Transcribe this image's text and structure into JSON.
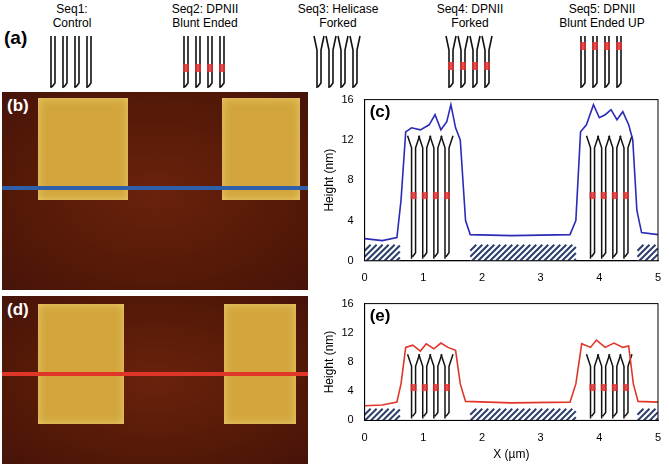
{
  "diagram": {
    "letter": "(a)",
    "sequences": [
      {
        "lines": [
          "Seq1:",
          "Control"
        ]
      },
      {
        "lines": [
          "Seq2: DPNII",
          "Blunt Ended"
        ]
      },
      {
        "lines": [
          "Seq3: Helicase",
          "Forked"
        ]
      },
      {
        "lines": [
          "Seq4: DPNII",
          "Forked"
        ]
      },
      {
        "lines": [
          "Seq5: DPNII",
          "Blunt Ended UP"
        ]
      }
    ]
  },
  "images": [
    {
      "letter": "(b)",
      "line_color": "#2f5fa8"
    },
    {
      "letter": "(d)",
      "line_color": "#e0362a"
    }
  ],
  "chart_data": [
    {
      "type": "line",
      "title": "(c)",
      "ylabel": "Height (nm)",
      "x": [
        0,
        0.3,
        0.55,
        0.62,
        0.7,
        0.8,
        0.95,
        1.1,
        1.2,
        1.3,
        1.4,
        1.47,
        1.55,
        1.63,
        1.72,
        1.8,
        2.5,
        3.5,
        3.6,
        3.68,
        3.78,
        3.9,
        4.0,
        4.1,
        4.2,
        4.3,
        4.4,
        4.5,
        4.57,
        4.64,
        4.72,
        5
      ],
      "values": [
        2.2,
        2.0,
        2.3,
        6,
        12.8,
        13.2,
        13,
        13.5,
        14.5,
        13,
        13.8,
        15.5,
        13.2,
        12,
        4,
        2.6,
        2.5,
        2.6,
        4,
        12.8,
        13.5,
        15.5,
        14.2,
        14.5,
        15,
        14,
        14.8,
        13.5,
        12,
        5,
        2.8,
        2.6
      ],
      "color": "#2b2bb8",
      "xlim": [
        0,
        5
      ],
      "xticks": [
        0,
        1,
        2,
        3,
        4,
        5
      ],
      "ylim": [
        0,
        16
      ],
      "yticks": [
        0,
        4,
        8,
        12,
        16
      ],
      "grid": false
    },
    {
      "type": "line",
      "title": "(e)",
      "ylabel": "Height (nm)",
      "xlabel": "X (µm)",
      "x": [
        0,
        0.3,
        0.55,
        0.62,
        0.7,
        0.82,
        0.95,
        1.05,
        1.18,
        1.3,
        1.42,
        1.55,
        1.63,
        1.72,
        2.5,
        3.5,
        3.6,
        3.7,
        3.85,
        3.95,
        4.1,
        4.25,
        4.4,
        4.5,
        4.58,
        4.66,
        5
      ],
      "values": [
        2.0,
        2.1,
        2.5,
        5,
        10,
        10.3,
        9.5,
        10.5,
        9.8,
        10.6,
        10,
        9.6,
        5,
        2.6,
        2.4,
        2.5,
        5,
        10.5,
        10,
        11,
        10,
        10.6,
        10,
        10.2,
        5,
        2.6,
        2.5
      ],
      "color": "#e0362a",
      "xlim": [
        0,
        5
      ],
      "xticks": [
        0,
        1,
        2,
        3,
        4,
        5
      ],
      "ylim": [
        0,
        16
      ],
      "yticks": [
        0,
        4,
        8,
        12,
        16
      ],
      "grid": false
    }
  ]
}
